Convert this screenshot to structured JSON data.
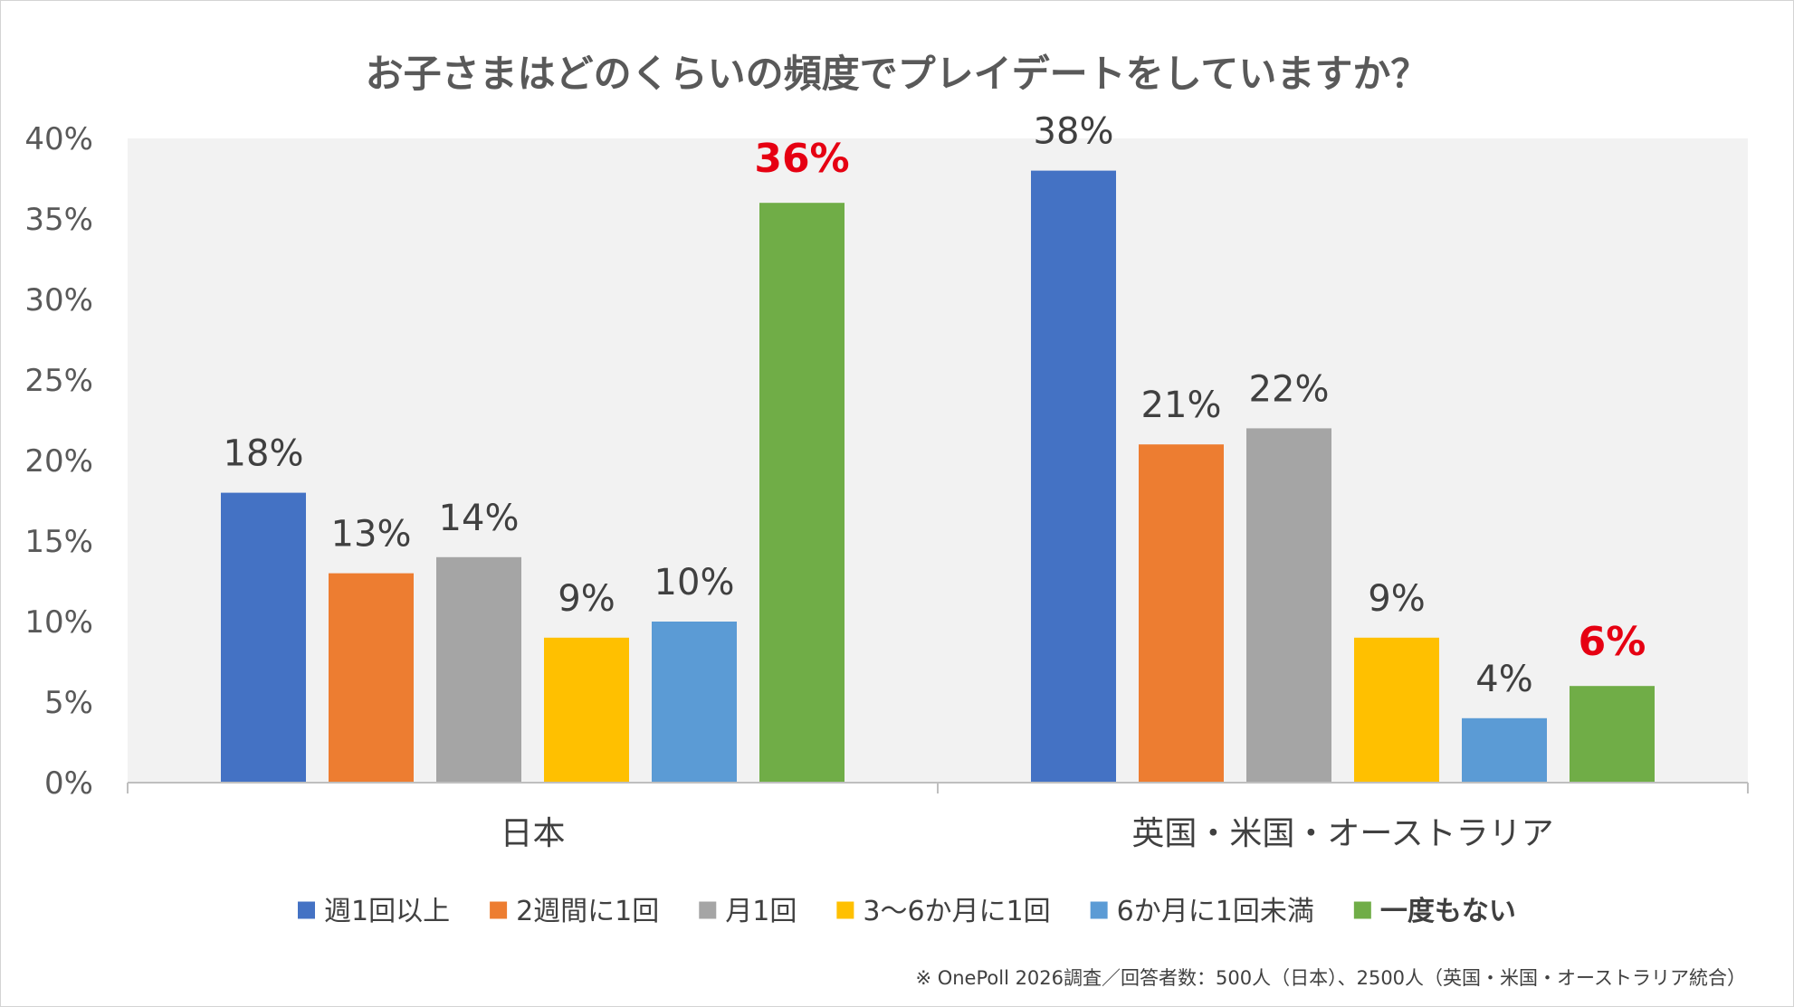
{
  "chart_data": {
    "type": "bar",
    "title": "お子さまはどのくらいの頻度でプレイデートをしていますか？",
    "categories": [
      "日本",
      "英国・米国・オーストラリア"
    ],
    "series": [
      {
        "name": "週1回以上",
        "color": "#4472c4",
        "values": [
          18,
          38
        ]
      },
      {
        "name": "2週間に1回",
        "color": "#ed7d31",
        "values": [
          13,
          21
        ]
      },
      {
        "name": "月1回",
        "color": "#a5a5a5",
        "values": [
          14,
          22
        ]
      },
      {
        "name": "3～6か月に1回",
        "color": "#ffc000",
        "values": [
          9,
          9
        ]
      },
      {
        "name": "6か月に1回未満",
        "color": "#5b9bd5",
        "values": [
          10,
          4
        ]
      },
      {
        "name": "一度もない",
        "color": "#70ad47",
        "values": [
          36,
          6
        ],
        "emphasis": true
      }
    ],
    "data_labels": [
      [
        "18%",
        "38%"
      ],
      [
        "13%",
        "21%"
      ],
      [
        "14%",
        "22%"
      ],
      [
        "9%",
        "9%"
      ],
      [
        "10%",
        "4%"
      ],
      [
        "36%",
        "6%"
      ]
    ],
    "y_ticks": [
      "0%",
      "5%",
      "10%",
      "15%",
      "20%",
      "25%",
      "30%",
      "35%",
      "40%"
    ],
    "ylim": [
      0,
      40
    ],
    "y_unit": "%",
    "grid": false,
    "legend_position": "bottom",
    "emphasis_color": "#e60012",
    "plot_background": "#f2f2f2",
    "note": "※ OnePoll 2026調査／回答者数：500人（日本）、2500人（英国・米国・オーストラリア統合）"
  }
}
